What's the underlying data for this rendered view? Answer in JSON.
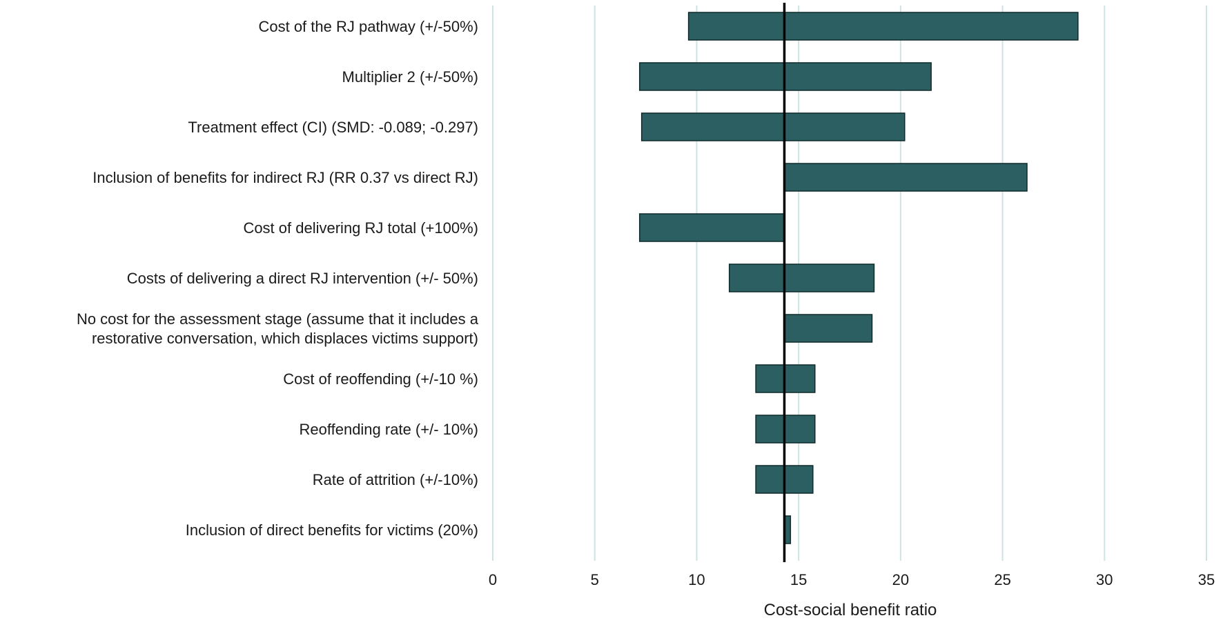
{
  "chart_data": {
    "type": "tornado",
    "title": "",
    "xlabel": "Cost-social benefit ratio",
    "ylabel": "",
    "xlim": [
      0,
      35
    ],
    "xticks": [
      0,
      5,
      10,
      15,
      20,
      25,
      30,
      35
    ],
    "grid": "vertical",
    "base_value": 14.3,
    "colors": {
      "bar": "#2b5f61",
      "bar_edge": "#0f2a2b",
      "grid": "#cfe3e4",
      "base_line": "#000000"
    },
    "items": [
      {
        "label": "Cost of the RJ pathway (+/-50%)",
        "low": 9.6,
        "high": 28.7
      },
      {
        "label": "Multiplier 2 (+/-50%)",
        "low": 7.2,
        "high": 21.5
      },
      {
        "label": "Treatment effect (CI) (SMD: -0.089; -0.297)",
        "low": 7.3,
        "high": 20.2
      },
      {
        "label": "Inclusion of benefits for indirect RJ (RR 0.37 vs direct RJ)",
        "low": 14.3,
        "high": 26.2
      },
      {
        "label": "Cost of delivering RJ total (+100%)",
        "low": 7.2,
        "high": 14.3
      },
      {
        "label": "Costs of delivering a direct RJ intervention (+/- 50%)",
        "low": 11.6,
        "high": 18.7
      },
      {
        "label": "No cost for the assessment stage (assume that it includes a restorative conversation, which displaces victims support)",
        "label_lines": [
          "No cost for the assessment stage (assume that it includes a",
          "restorative conversation, which displaces victims support)"
        ],
        "low": 14.3,
        "high": 18.6
      },
      {
        "label": "Cost of reoffending (+/-10 %)",
        "low": 12.9,
        "high": 15.8
      },
      {
        "label": "Reoffending rate (+/- 10%)",
        "low": 12.9,
        "high": 15.8
      },
      {
        "label": "Rate of attrition (+/-10%)",
        "low": 12.9,
        "high": 15.7
      },
      {
        "label": "Inclusion of direct benefits for victims (20%)",
        "low": 14.3,
        "high": 14.6
      }
    ]
  }
}
